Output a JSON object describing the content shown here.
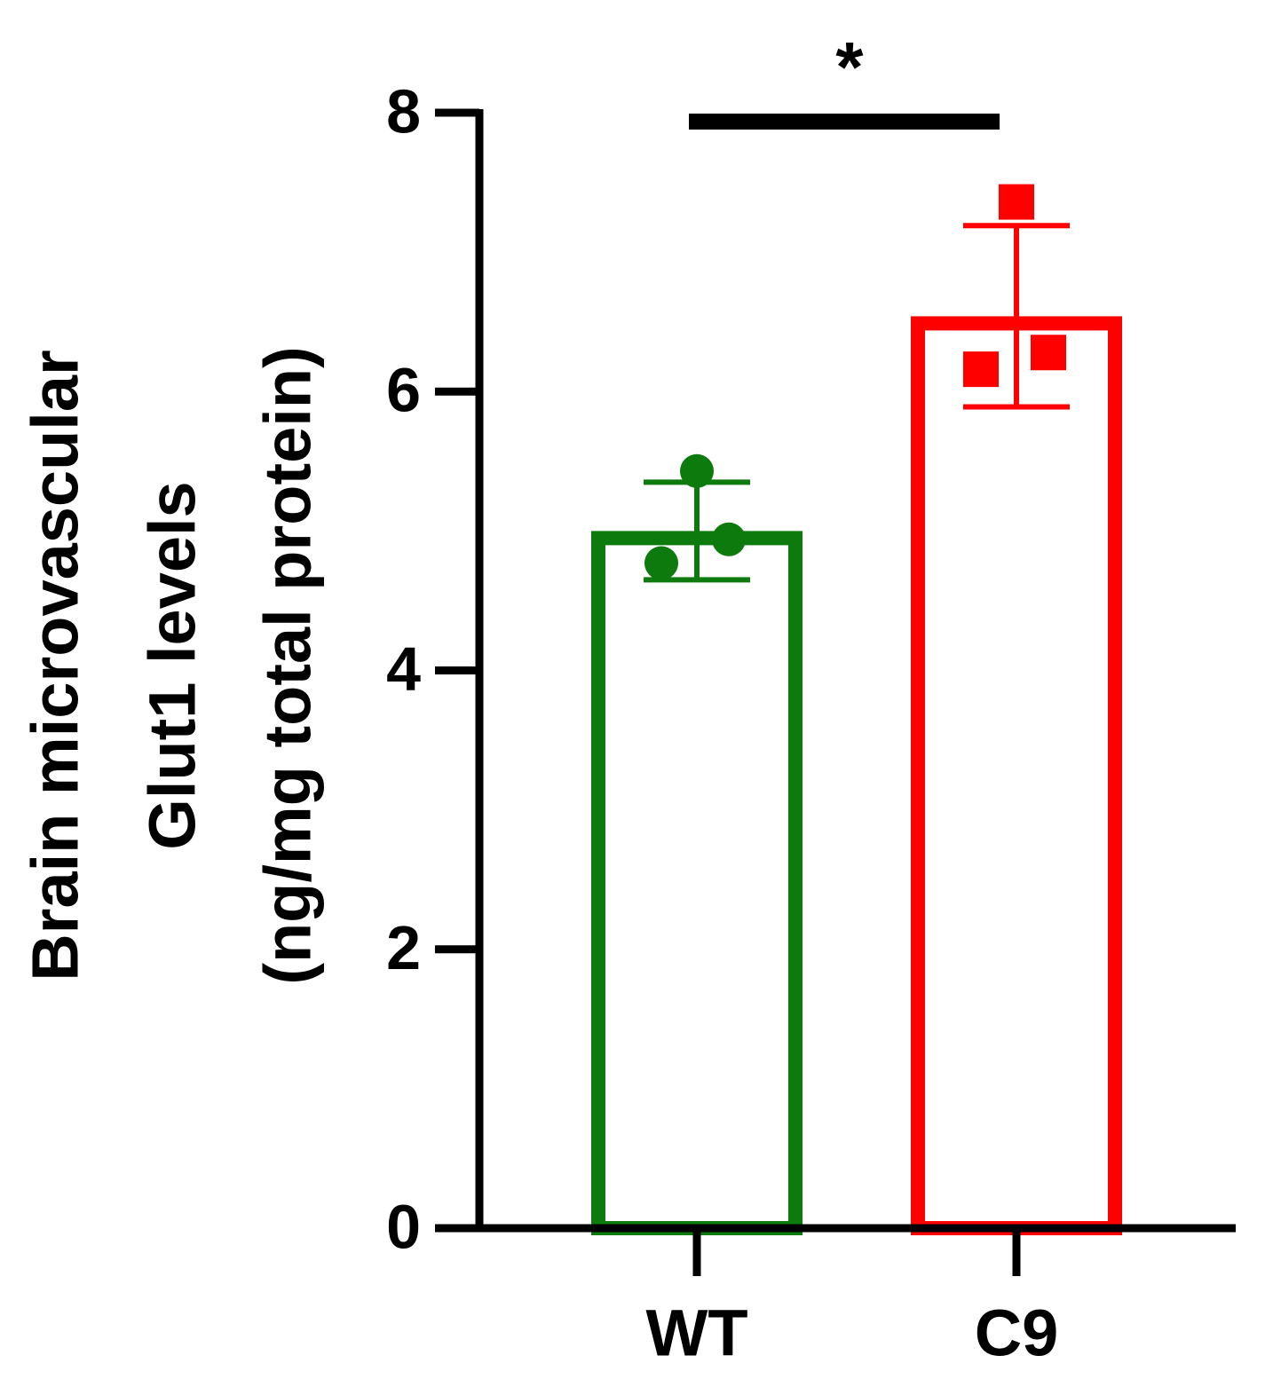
{
  "chart_data": {
    "type": "bar",
    "y_label_lines": [
      "Brain microvascular",
      "Glut1 levels",
      "(ng/mg total protein)"
    ],
    "categories": [
      "WT",
      "C9"
    ],
    "values": [
      5.0,
      6.54
    ],
    "errors": [
      0.35,
      0.65
    ],
    "points": [
      [
        5.43,
        4.94,
        4.77
      ],
      [
        7.36,
        6.28,
        6.16
      ]
    ],
    "colors": [
      "#0c7a0c",
      "#ff0000"
    ],
    "markers": [
      "circle",
      "square"
    ],
    "significance": "*",
    "ylim": [
      0,
      8
    ],
    "yticks": [
      0,
      2,
      4,
      6,
      8
    ]
  }
}
